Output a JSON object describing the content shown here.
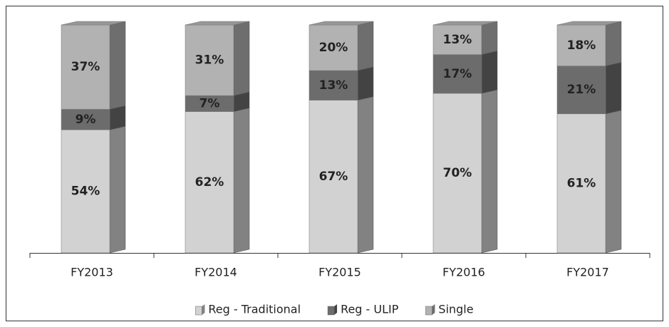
{
  "chart_data": {
    "type": "stacked_bar",
    "categories": [
      "FY2013",
      "FY2014",
      "FY2015",
      "FY2016",
      "FY2017"
    ],
    "series": [
      {
        "name": "Reg - Traditional",
        "color": "#d2d2d2",
        "values": [
          54,
          62,
          67,
          70,
          61
        ],
        "value_labels": [
          "54%",
          "62%",
          "67%",
          "70%",
          "61%"
        ]
      },
      {
        "name": "Reg - ULIP",
        "color": "#6c6c6c",
        "values": [
          9,
          7,
          13,
          17,
          21
        ],
        "value_labels": [
          "9%",
          "7%",
          "13%",
          "17%",
          "21%"
        ]
      },
      {
        "name": "Single",
        "color": "#b2b2b2",
        "values": [
          37,
          31,
          20,
          13,
          18
        ],
        "value_labels": [
          "37%",
          "31%",
          "20%",
          "13%",
          "18%"
        ]
      }
    ],
    "ylim": [
      0,
      100
    ],
    "legend": "bottom"
  }
}
